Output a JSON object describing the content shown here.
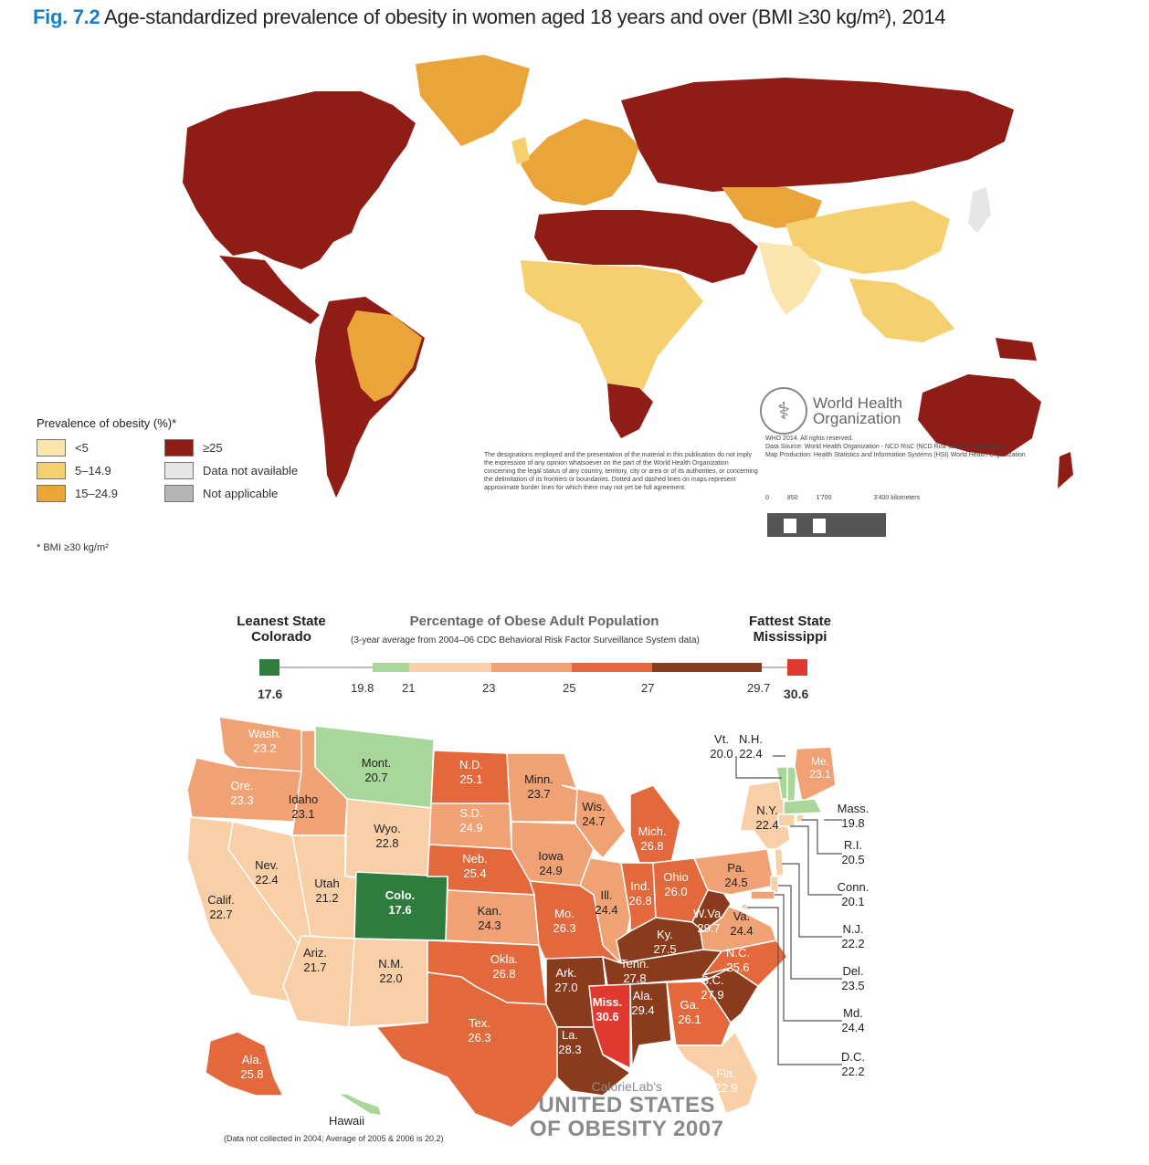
{
  "title": {
    "fig_number": "Fig. 7.2",
    "text": "Age-standardized prevalence of obesity in women aged 18 years and over (BMI ≥30 kg/m²), 2014"
  },
  "colors": {
    "c1": "#fbe6b0",
    "c2": "#f6cf6f",
    "c3": "#eaa43a",
    "c4": "#8f1d16",
    "na": "#e6e6e6",
    "napp": "#b5b5b5",
    "ocean": "#ffffff"
  },
  "world_legend": {
    "title": "Prevalence of obesity (%)*",
    "items": [
      {
        "label": "<5",
        "color": "#fbe6b0"
      },
      {
        "label": "≥25",
        "color": "#8f1d16"
      },
      {
        "label": "5–14.9",
        "color": "#f6cf6f"
      },
      {
        "label": "Data not available",
        "color": "#e6e6e6"
      },
      {
        "label": "15–24.9",
        "color": "#eaa43a"
      },
      {
        "label": "Not applicable",
        "color": "#b5b5b5"
      }
    ],
    "footnote": "* BMI ≥30 kg/m²"
  },
  "who": {
    "name": "World Health Organization",
    "copyright": "WHO 2014. All rights reserved.",
    "source": "Data Source: World Health Organization - NCD RisC (NCD Risk factor Collaboration)",
    "production": "Map Production: Health Statistics and Information Systems (HSI) World Health Organization",
    "disclaimer": "The designations employed and the presentation of the material in this publication do not imply the expression of any opinion whatsoever on the part of the World Health Organization concerning the legal status of any country, territory, city or area or of its authorities, or concerning the delimitation of its frontiers or boundaries. Dotted and dashed lines on maps represent approximate border lines for which there may not yet be full agreement.",
    "scale_labels": [
      "0",
      "850",
      "1'700",
      "3'400 kilometers"
    ]
  },
  "us_legend": {
    "lean_title": "Leanest State",
    "lean_state": "Colorado",
    "lean_value": "17.6",
    "fat_title": "Fattest State",
    "fat_state": "Mississippi",
    "fat_value": "30.6",
    "center_title": "Percentage of Obese Adult Population",
    "center_sub": "(3-year average from 2004–06 CDC Behavioral Risk Factor Surveillance System data)",
    "ticks": [
      "19.8",
      "21",
      "23",
      "25",
      "27",
      "29.7"
    ],
    "colors": [
      "#a9d79a",
      "#f8cfa6",
      "#f0a275",
      "#e3683b",
      "#8a3b1b"
    ],
    "lean_color": "#2e7d3f",
    "fat_color": "#e03a30"
  },
  "states": [
    {
      "abbr": "Wash.",
      "value": "23.2"
    },
    {
      "abbr": "Ore.",
      "value": "23.3"
    },
    {
      "abbr": "Idaho",
      "value": "23.1"
    },
    {
      "abbr": "Mont.",
      "value": "20.7"
    },
    {
      "abbr": "Wyo.",
      "value": "22.8"
    },
    {
      "abbr": "Nev.",
      "value": "22.4"
    },
    {
      "abbr": "Utah",
      "value": "21.2"
    },
    {
      "abbr": "Calif.",
      "value": "22.7"
    },
    {
      "abbr": "Colo.",
      "value": "17.6"
    },
    {
      "abbr": "Ariz.",
      "value": "21.7"
    },
    {
      "abbr": "N.M.",
      "value": "22.0"
    },
    {
      "abbr": "N.D.",
      "value": "25.1"
    },
    {
      "abbr": "S.D.",
      "value": "24.9"
    },
    {
      "abbr": "Neb.",
      "value": "25.4"
    },
    {
      "abbr": "Kan.",
      "value": "24.3"
    },
    {
      "abbr": "Okla.",
      "value": "26.8"
    },
    {
      "abbr": "Tex.",
      "value": "26.3"
    },
    {
      "abbr": "Minn.",
      "value": "23.7"
    },
    {
      "abbr": "Iowa",
      "value": "24.9"
    },
    {
      "abbr": "Mo.",
      "value": "26.3"
    },
    {
      "abbr": "Ark.",
      "value": "27.0"
    },
    {
      "abbr": "La.",
      "value": "28.3"
    },
    {
      "abbr": "Wis.",
      "value": "24.7"
    },
    {
      "abbr": "Ill.",
      "value": "24.4"
    },
    {
      "abbr": "Mich.",
      "value": "26.8"
    },
    {
      "abbr": "Ind.",
      "value": "26.8"
    },
    {
      "abbr": "Ohio",
      "value": "26.0"
    },
    {
      "abbr": "Ky.",
      "value": "27.5"
    },
    {
      "abbr": "Tenn.",
      "value": "27.8"
    },
    {
      "abbr": "Miss.",
      "value": "30.6"
    },
    {
      "abbr": "Ala.",
      "value": "29.4"
    },
    {
      "abbr": "Ga.",
      "value": "26.1"
    },
    {
      "abbr": "Fla.",
      "value": "22.9"
    },
    {
      "abbr": "S.C.",
      "value": "27.9"
    },
    {
      "abbr": "N.C.",
      "value": "25.6"
    },
    {
      "abbr": "Va.",
      "value": "24.4"
    },
    {
      "abbr": "W.Va.",
      "value": "29.7"
    },
    {
      "abbr": "Pa.",
      "value": "24.5"
    },
    {
      "abbr": "N.Y.",
      "value": "22.4"
    },
    {
      "abbr": "Vt.",
      "value": "20.0"
    },
    {
      "abbr": "N.H.",
      "value": "22.4"
    },
    {
      "abbr": "Me.",
      "value": "23.1"
    },
    {
      "abbr": "Mass.",
      "value": "19.8"
    },
    {
      "abbr": "R.I.",
      "value": "20.5"
    },
    {
      "abbr": "Conn.",
      "value": "20.1"
    },
    {
      "abbr": "N.J.",
      "value": "22.2"
    },
    {
      "abbr": "Del.",
      "value": "23.5"
    },
    {
      "abbr": "Md.",
      "value": "24.4"
    },
    {
      "abbr": "D.C.",
      "value": "22.2"
    },
    {
      "abbr": "Ala.",
      "value": "25.8"
    },
    {
      "abbr": "Hawaii",
      "value": ""
    }
  ],
  "hawaii_note": "(Data not collected in 2004; Average of 2005 & 2006 is 20.2)",
  "brand": {
    "line1": "CalorieLab's",
    "line2": "UNITED STATES",
    "line3": "OF OBESITY 2007"
  }
}
